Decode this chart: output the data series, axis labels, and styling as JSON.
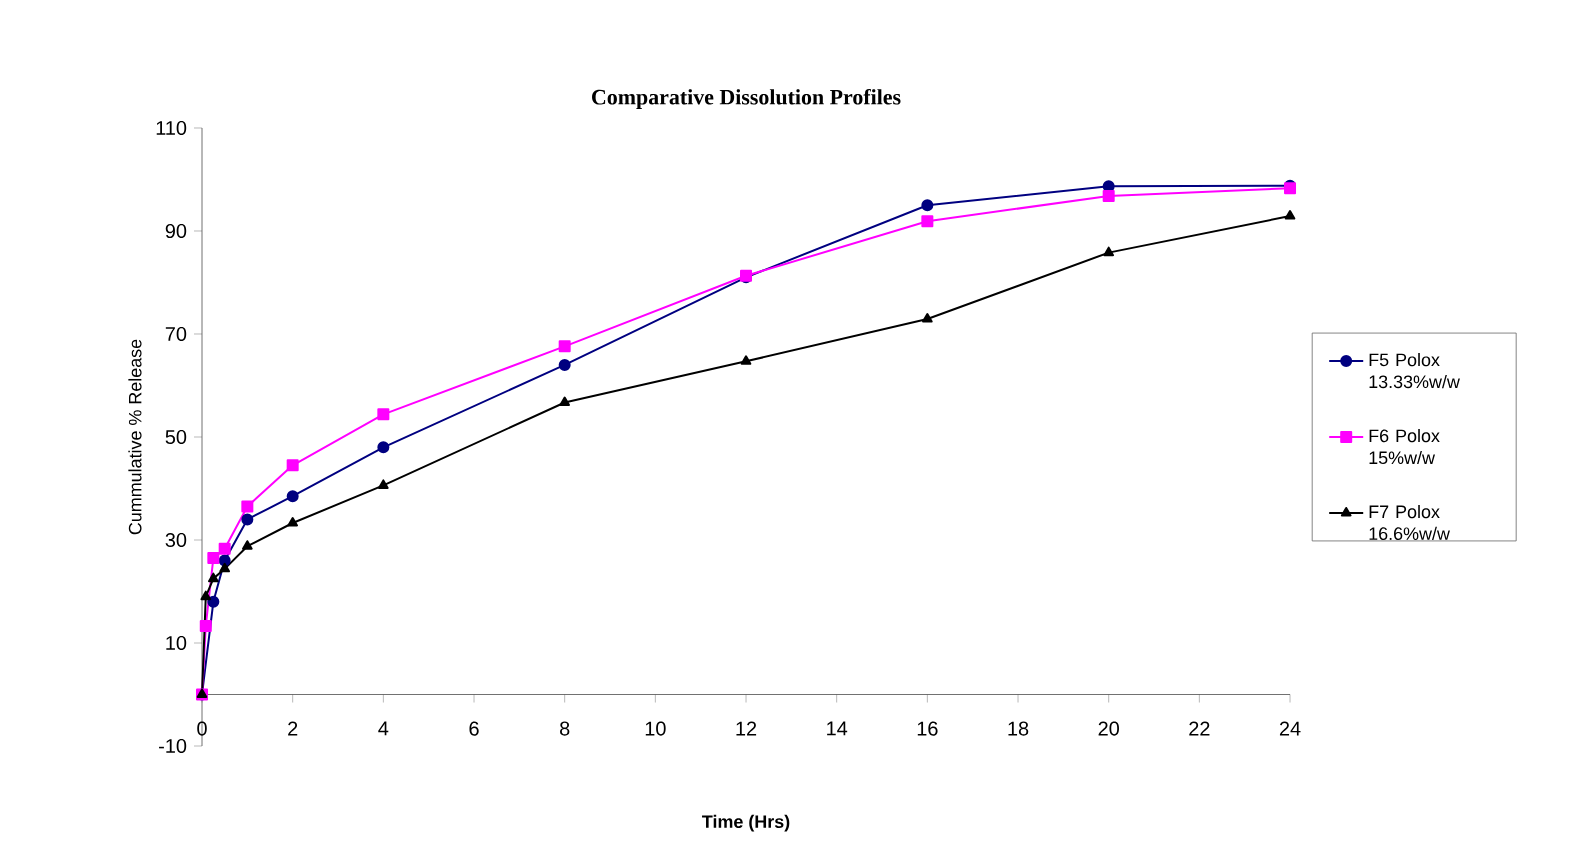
{
  "chart_data": {
    "type": "line",
    "title": "Comparative Dissolution Profiles",
    "xlabel": "Time (Hrs)",
    "ylabel": "Cummulative % Release",
    "xlim": [
      0,
      24
    ],
    "xticks": [
      0,
      2,
      4,
      6,
      8,
      10,
      12,
      14,
      16,
      18,
      20,
      22,
      24
    ],
    "ylim": [
      -10,
      110
    ],
    "yticks": [
      -10,
      10,
      30,
      50,
      70,
      90,
      110
    ],
    "legend": "right",
    "grid": false,
    "series": [
      {
        "name": "F5 Polox 13.33%w/w",
        "color": "#000080",
        "marker": "circle",
        "x": [
          0,
          0.25,
          0.5,
          1,
          2,
          4,
          8,
          12,
          16,
          20,
          24
        ],
        "values": [
          0,
          18,
          26,
          34,
          38.5,
          48,
          64,
          81,
          95,
          98.7,
          98.8
        ]
      },
      {
        "name": "F6 Polox 15%w/w",
        "color": "#ff00ff",
        "marker": "square",
        "x": [
          0,
          0.083,
          0.25,
          0.5,
          1,
          2,
          4,
          8,
          12,
          16,
          20,
          24
        ],
        "values": [
          0,
          13.3,
          26.5,
          28.3,
          36.5,
          44.5,
          54.4,
          67.6,
          81.3,
          91.9,
          96.8,
          98.3
        ]
      },
      {
        "name": "F7 Polox 16.6%w/w",
        "color": "#000000",
        "marker": "triangle",
        "x": [
          0,
          0.083,
          0.25,
          0.5,
          1,
          2,
          4,
          8,
          12,
          16,
          20,
          24
        ],
        "values": [
          0,
          19,
          22.5,
          24.4,
          28.8,
          33.3,
          40.6,
          56.7,
          64.7,
          72.9,
          85.8,
          92.9
        ]
      }
    ]
  }
}
